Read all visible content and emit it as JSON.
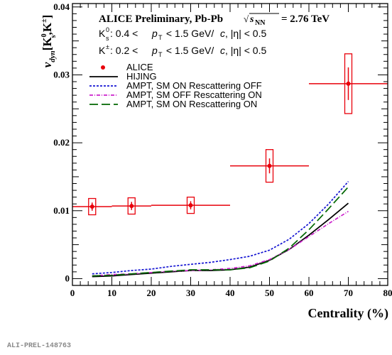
{
  "figure_id": "ALI-PREL-148763",
  "chart_data": {
    "type": "scatter",
    "title": "ALICE Preliminary, Pb-Pb",
    "energy_prefix": "√",
    "energy_label": "s",
    "energy_subscript": "NN",
    "energy_value": "= 2.76 TeV",
    "selection_k0": {
      "symbol": "K",
      "sup": "0",
      "sub": "s",
      "range_start": ": 0.4 < ",
      "p": "p",
      "p_sub": "T",
      "range_end": " < 1.5 GeV/",
      "c": "c",
      "eta_cut": ", |η| < 0.5"
    },
    "selection_kpm": {
      "symbol": "K",
      "sup": "±",
      "range_start": ": 0.2 < ",
      "p": "p",
      "p_sub": "T",
      "range_end": " < 1.5 GeV/",
      "c": "c",
      "eta_cut": ", |η| < 0.5"
    },
    "ylabel": {
      "nu": "ν",
      "sub": "dyn",
      "bracket_open": "[K",
      "k0_sup": "0",
      "k0_sub": "s",
      "sep": ",K",
      "pm_sup": "±",
      "bracket_close": "]"
    },
    "xlabel": "Centrality (%)",
    "xlim": [
      0,
      80
    ],
    "ylim": [
      -0.001,
      0.0405
    ],
    "xticks": [
      0,
      10,
      20,
      30,
      40,
      50,
      60,
      70,
      80
    ],
    "xtick_labels": [
      "0",
      "10",
      "20",
      "30",
      "40",
      "50",
      "60",
      "70",
      "80"
    ],
    "yticks": [
      0,
      0.01,
      0.02,
      0.03,
      0.04
    ],
    "ytick_labels": [
      "0",
      "0.01",
      "0.02",
      "0.03",
      "0.04"
    ],
    "legend_position": "top-left",
    "series": [
      {
        "name": "ALICE",
        "kind": "points",
        "color": "#e8000b",
        "points": [
          {
            "x": 5,
            "y": 0.0106,
            "x_low": 0,
            "x_high": 10,
            "stat_err": 0.0006,
            "sys_err": 0.0012
          },
          {
            "x": 15,
            "y": 0.0107,
            "x_low": 10,
            "x_high": 20,
            "stat_err": 0.0006,
            "sys_err": 0.0012
          },
          {
            "x": 30,
            "y": 0.0108,
            "x_low": 20,
            "x_high": 40,
            "stat_err": 0.0006,
            "sys_err": 0.0012
          },
          {
            "x": 50,
            "y": 0.0166,
            "x_low": 40,
            "x_high": 60,
            "stat_err": 0.0011,
            "sys_err": 0.0024
          },
          {
            "x": 70,
            "y": 0.0287,
            "x_low": 60,
            "x_high": 80,
            "stat_err": 0.0024,
            "sys_err": 0.0044
          }
        ]
      },
      {
        "name": "HIJING",
        "kind": "line",
        "color": "#000000",
        "dash": "solid",
        "x": [
          5,
          10,
          15,
          20,
          25,
          30,
          35,
          40,
          45,
          50,
          55,
          60,
          65,
          70
        ],
        "y": [
          0.0003,
          0.0004,
          0.0006,
          0.0008,
          0.001,
          0.0012,
          0.0012,
          0.0013,
          0.0017,
          0.0027,
          0.0043,
          0.0064,
          0.0087,
          0.0111
        ]
      },
      {
        "name": "AMPT, SM ON Rescattering OFF",
        "kind": "line",
        "color": "#1414d2",
        "dash": "dotted",
        "x": [
          5,
          10,
          15,
          20,
          25,
          30,
          35,
          40,
          45,
          50,
          55,
          60,
          65,
          70
        ],
        "y": [
          0.0007,
          0.0009,
          0.0012,
          0.0014,
          0.0018,
          0.0021,
          0.0024,
          0.0028,
          0.0033,
          0.0042,
          0.0058,
          0.0081,
          0.011,
          0.0143
        ]
      },
      {
        "name": "AMPT, SM OFF Rescattering ON",
        "kind": "line",
        "color": "#cc22cc",
        "dash": "dashdot",
        "x": [
          5,
          10,
          15,
          20,
          25,
          30,
          35,
          40,
          45,
          50,
          55,
          60,
          65,
          70
        ],
        "y": [
          0.0004,
          0.0006,
          0.0007,
          0.0009,
          0.0011,
          0.0012,
          0.0013,
          0.0015,
          0.0019,
          0.0028,
          0.0043,
          0.0062,
          0.0081,
          0.0099
        ]
      },
      {
        "name": "AMPT, SM ON Rescattering ON",
        "kind": "line",
        "color": "#006600",
        "dash": "longdash",
        "x": [
          5,
          10,
          15,
          20,
          25,
          30,
          35,
          40,
          45,
          50,
          55,
          60,
          65,
          70
        ],
        "y": [
          0.0004,
          0.0005,
          0.0007,
          0.0009,
          0.0011,
          0.0013,
          0.0013,
          0.0013,
          0.0016,
          0.0026,
          0.0045,
          0.0072,
          0.0103,
          0.0135
        ]
      }
    ]
  }
}
